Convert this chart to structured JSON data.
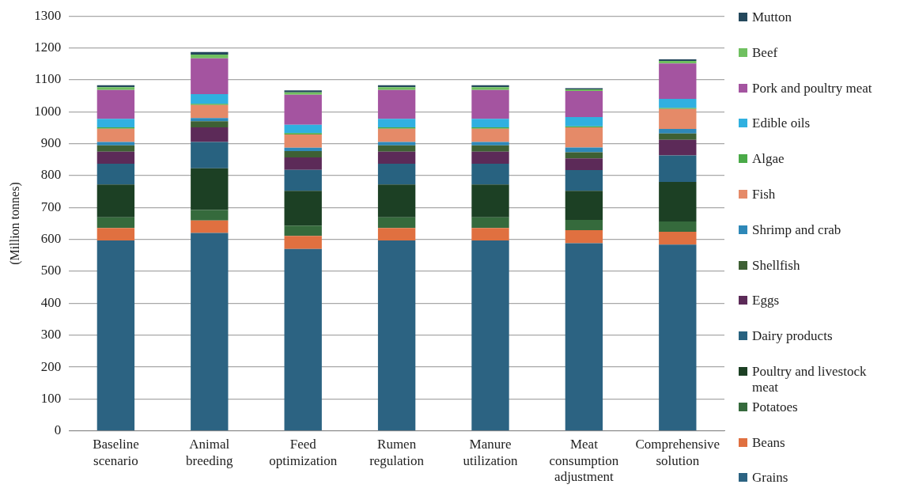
{
  "chart_data": {
    "type": "bar",
    "stacked": true,
    "ylabel": "(Million tonnes)",
    "categories": [
      "Baseline scenario",
      "Animal breeding",
      "Feed optimization",
      "Rumen regulation",
      "Manure utilization",
      "Meat consumption adjustment",
      "Comprehensive solution"
    ],
    "ylim": [
      0,
      1300
    ],
    "yticks": [
      0,
      100,
      200,
      300,
      400,
      500,
      600,
      700,
      800,
      900,
      1000,
      1100,
      1200,
      1300
    ],
    "grid": "y",
    "legend": "right",
    "series": [
      {
        "name": "Grains",
        "color": "#2c6382",
        "values": [
          597,
          620,
          570,
          597,
          597,
          588,
          584
        ]
      },
      {
        "name": "Beans",
        "color": "#e07040",
        "values": [
          39,
          39,
          41,
          39,
          39,
          41,
          40
        ]
      },
      {
        "name": "Potatoes",
        "color": "#356a3c",
        "values": [
          33,
          33,
          32,
          33,
          33,
          32,
          32
        ]
      },
      {
        "name": "Poultry and livestock meat",
        "color": "#1c4024",
        "values": [
          103,
          131,
          109,
          103,
          103,
          91,
          124
        ]
      },
      {
        "name": "Dairy products",
        "color": "#286280",
        "values": [
          65,
          82,
          66,
          65,
          65,
          65,
          83
        ]
      },
      {
        "name": "Eggs",
        "color": "#5c2a58",
        "values": [
          38,
          46,
          39,
          38,
          38,
          37,
          49
        ]
      },
      {
        "name": "Shellfish",
        "color": "#3e6034",
        "values": [
          20,
          19,
          20,
          20,
          20,
          19,
          20
        ]
      },
      {
        "name": "Shrimp and crab",
        "color": "#2e88b8",
        "values": [
          10,
          10,
          10,
          10,
          10,
          15,
          14
        ]
      },
      {
        "name": "Fish",
        "color": "#e58a68",
        "values": [
          42,
          41,
          42,
          42,
          42,
          63,
          63
        ]
      },
      {
        "name": "Algae",
        "color": "#4aaa48",
        "values": [
          4,
          4,
          4,
          4,
          4,
          3,
          3
        ]
      },
      {
        "name": "Edible oils",
        "color": "#30b0e0",
        "values": [
          27,
          30,
          26,
          27,
          27,
          29,
          28
        ]
      },
      {
        "name": "Pork and poultry meat",
        "color": "#a454a0",
        "values": [
          90,
          112,
          94,
          90,
          90,
          82,
          111
        ]
      },
      {
        "name": "Beef",
        "color": "#70c060",
        "values": [
          9,
          12,
          8,
          9,
          9,
          5,
          8
        ]
      },
      {
        "name": "Mutton",
        "color": "#24485c",
        "values": [
          6,
          8,
          6,
          6,
          6,
          4,
          5
        ]
      }
    ]
  }
}
